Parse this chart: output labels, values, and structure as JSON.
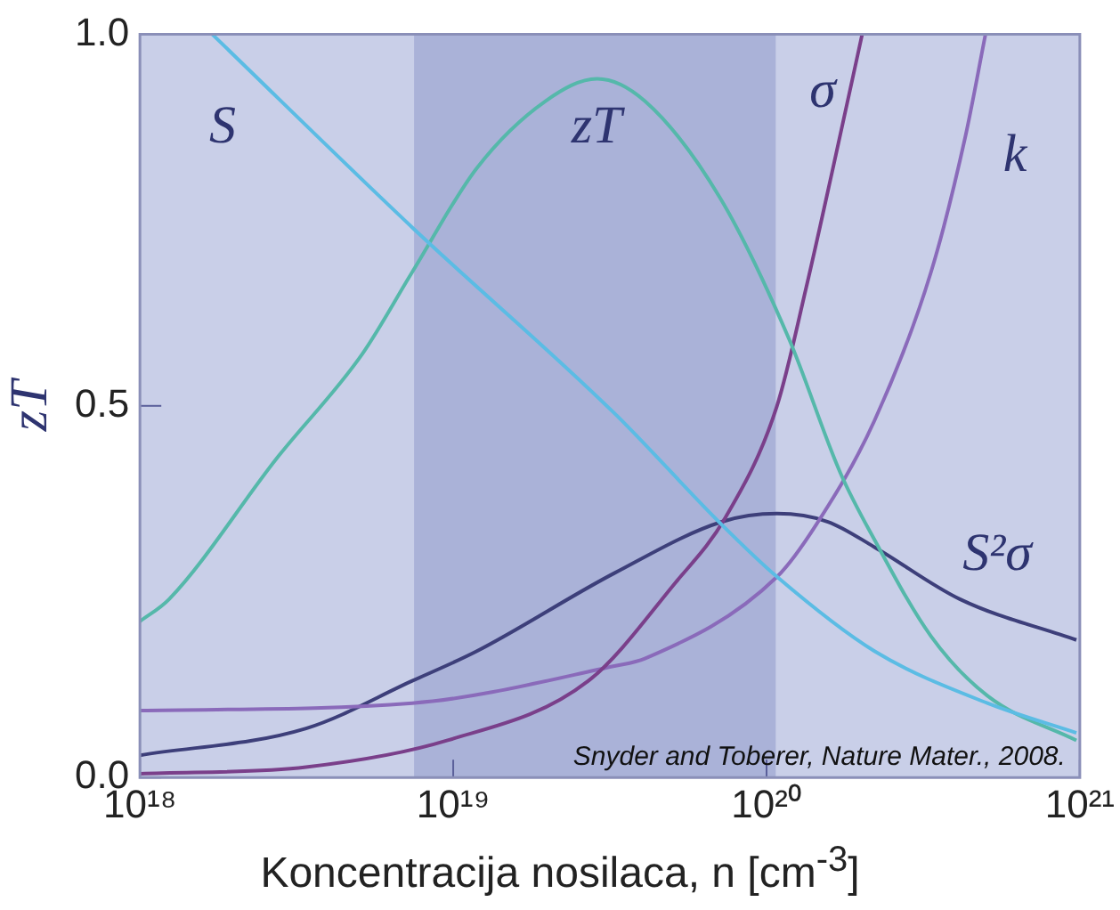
{
  "chart_data": {
    "type": "line",
    "xlabel": "Koncentracija nosilaca, n [cm$^{-3}$]",
    "ylabel": "zT",
    "log": "x",
    "legend": false,
    "xlim": [
      1e+18,
      1e+21
    ],
    "ylim": [
      0,
      1
    ],
    "xticks": [
      {
        "value": 1e+18,
        "label": "10¹⁸"
      },
      {
        "value": 1e+19,
        "label": "10¹⁹"
      },
      {
        "value": 1e+20,
        "label": "10²⁰"
      },
      {
        "value": 1e+21,
        "label": "10²¹"
      }
    ],
    "yticks": [
      {
        "value": 0,
        "label": "0.0"
      },
      {
        "value": 0.5,
        "label": "0.5"
      },
      {
        "value": 1,
        "label": "1.0"
      }
    ],
    "bands": [
      {
        "axis": "x",
        "from": 7.5e+18,
        "to": 1.07e+20,
        "color": "#aab2d8"
      }
    ],
    "annotations": [
      "Snyder and Toberer, Nature Mater., 2008."
    ],
    "series": [
      {
        "name": "S",
        "color": "#5bbce4",
        "x": [
          1.7e+18,
          7.4e+18,
          3.27e+19,
          7.2e+19,
          1.08e+20,
          2.21e+20,
          5.07e+20,
          9.75e+20
        ],
        "values": [
          1.0,
          0.74,
          0.49,
          0.34,
          0.27,
          0.17,
          0.1,
          0.06
        ]
      },
      {
        "name": "zT",
        "color": "#55b8aa",
        "x": [
          1e+18,
          1.24e+18,
          2.74e+18,
          5.13e+18,
          7.4e+18,
          1.19e+19,
          1.97e+19,
          2.88e+19,
          4.09e+19,
          7.1e+19,
          1.18e+20,
          1.72e+20,
          2.21e+20,
          3.35e+20,
          5.07e+20,
          9.75e+20
        ],
        "values": [
          0.21,
          0.24,
          0.43,
          0.57,
          0.68,
          0.82,
          0.91,
          0.94,
          0.91,
          0.78,
          0.59,
          0.41,
          0.32,
          0.19,
          0.11,
          0.05
        ]
      },
      {
        "name": "σ",
        "color": "#7a3f8a",
        "x": [
          1e+18,
          3.39e+18,
          9.6e+18,
          2.7e+19,
          5.07e+19,
          7.4e+19,
          1.08e+20,
          1.34e+20,
          1.63e+20,
          2.02e+20
        ],
        "values": [
          0.005,
          0.014,
          0.05,
          0.13,
          0.26,
          0.35,
          0.5,
          0.66,
          0.82,
          1.0
        ]
      },
      {
        "name": "k",
        "color": "#8a6aba",
        "x": [
          1e+18,
          7.4e+18,
          3.27e+19,
          4.09e+19,
          1.08e+20,
          1.44e+20,
          2.21e+20,
          3.35e+20,
          4.3e+20,
          5e+20
        ],
        "values": [
          0.09,
          0.1,
          0.15,
          0.16,
          0.27,
          0.34,
          0.48,
          0.68,
          0.86,
          1.0
        ]
      },
      {
        "name": "S²σ",
        "color": "#3d3f7a",
        "x": [
          1e+18,
          3.39e+18,
          7.4e+18,
          1.19e+19,
          3.27e+19,
          7.2e+19,
          1.08e+20,
          1.57e+20,
          2.21e+20,
          4.14e+20,
          9.75e+20
        ],
        "values": [
          0.03,
          0.066,
          0.13,
          0.17,
          0.275,
          0.344,
          0.355,
          0.344,
          0.31,
          0.24,
          0.185
        ]
      }
    ]
  }
}
